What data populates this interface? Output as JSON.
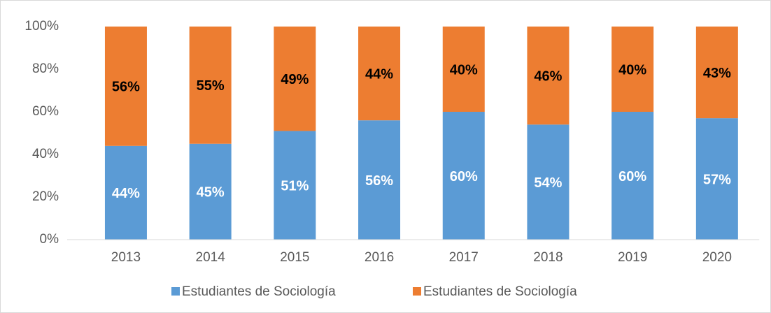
{
  "chart_data": {
    "type": "stacked_bar",
    "categories": [
      "2013",
      "2014",
      "2015",
      "2016",
      "2017",
      "2018",
      "2019",
      "2020"
    ],
    "series": [
      {
        "name": "Estudiantes de Sociología",
        "color": "#5b9bd5",
        "values": [
          44,
          45,
          51,
          56,
          60,
          54,
          60,
          57
        ],
        "value_labels": [
          "44%",
          "45%",
          "51%",
          "56%",
          "60%",
          "54%",
          "60%",
          "57%"
        ]
      },
      {
        "name": "Estudiantes de Sociología",
        "color": "#ed7d31",
        "values": [
          56,
          55,
          49,
          44,
          40,
          46,
          40,
          43
        ],
        "value_labels": [
          "56%",
          "55%",
          "49%",
          "44%",
          "40%",
          "46%",
          "40%",
          "43%"
        ]
      }
    ],
    "ylim": [
      0,
      100
    ],
    "yticks": [
      {
        "value": 0,
        "label": "0%"
      },
      {
        "value": 20,
        "label": "20%"
      },
      {
        "value": 40,
        "label": "40%"
      },
      {
        "value": 60,
        "label": "60%"
      },
      {
        "value": 80,
        "label": "80%"
      },
      {
        "value": 100,
        "label": "100%"
      }
    ],
    "legend": "bottom"
  }
}
